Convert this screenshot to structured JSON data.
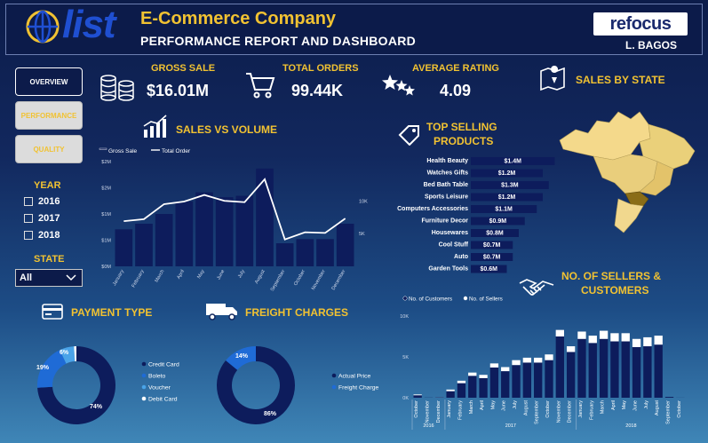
{
  "header": {
    "logo_text": "list",
    "company": "E-Commerce Company",
    "subtitle": "PERFORMANCE REPORT AND DASHBOARD",
    "brand": "refocus",
    "author": "L. BAGOS"
  },
  "nav": {
    "overview": "OVERVIEW",
    "performance": "PERFORMANCE",
    "quality": "QUALITY"
  },
  "filters": {
    "year_title": "YEAR",
    "years": [
      "2016",
      "2017",
      "2018"
    ],
    "state_title": "STATE",
    "state_selected": "All"
  },
  "kpis": {
    "gross_sale_label": "GROSS SALE",
    "gross_sale_value": "$16.01M",
    "total_orders_label": "TOTAL ORDERS",
    "total_orders_value": "99.44K",
    "avg_rating_label": "AVERAGE RATING",
    "avg_rating_value": "4.09",
    "sales_by_state_label": "SALES BY STATE"
  },
  "titles": {
    "sales_vs_volume": "SALES VS VOLUME",
    "top_selling_1": "TOP SELLING",
    "top_selling_2": "PRODUCTS",
    "payment_type": "PAYMENT TYPE",
    "freight_charges": "FREIGHT CHARGES",
    "sellers_1": "NO. OF SELLERS &",
    "sellers_2": "CUSTOMERS"
  },
  "colors": {
    "gold": "#f1c232",
    "navy": "#0c1b4a",
    "bar": "#0d1c5c",
    "accent_blue": "#1f6bd6",
    "light_blue": "#4aa3e8"
  },
  "chart_data": [
    {
      "type": "bar",
      "id": "sales_vs_volume",
      "title": "SALES VS VOLUME",
      "categories": [
        "January",
        "February",
        "March",
        "April",
        "May",
        "June",
        "July",
        "August",
        "September",
        "October",
        "November",
        "December"
      ],
      "series": [
        {
          "name": "Gross Sale",
          "axis": "left",
          "values": [
            1.06,
            1.22,
            1.5,
            1.86,
            2.12,
            1.98,
            2.02,
            2.8,
            0.66,
            0.78,
            0.78,
            1.22
          ]
        },
        {
          "name": "Total Order",
          "axis": "right",
          "values": [
            6.9,
            7.2,
            9.5,
            9.9,
            10.9,
            10.0,
            9.8,
            13.3,
            4.1,
            5.2,
            5.1,
            7.3
          ]
        }
      ],
      "left_ticks": [
        "$0M",
        "$1M",
        "$1M",
        "$2M",
        "$2M"
      ],
      "right_ticks": [
        "5K",
        "10K"
      ],
      "ylim_left": [
        0,
        3.0
      ],
      "ylim_right": [
        0,
        16
      ]
    },
    {
      "type": "bar",
      "id": "top_selling_products",
      "orientation": "horizontal",
      "categories": [
        "Health Beauty",
        "Watches Gifts",
        "Bed Bath Table",
        "Sports Leisure",
        "Computers Accessories",
        "Furniture Decor",
        "Housewares",
        "Cool Stuff",
        "Auto",
        "Garden Tools"
      ],
      "values": [
        1.4,
        1.2,
        1.3,
        1.2,
        1.1,
        0.9,
        0.8,
        0.7,
        0.7,
        0.6
      ],
      "labels": [
        "$1.4M",
        "$1.2M",
        "$1.3M",
        "$1.2M",
        "$1.1M",
        "$0.9M",
        "$0.8M",
        "$0.7M",
        "$0.7M",
        "$0.6M"
      ],
      "xlim": [
        0,
        1.6
      ]
    },
    {
      "type": "pie",
      "id": "payment_type",
      "donut": true,
      "categories": [
        "Credit Card",
        "Boleto",
        "Voucher",
        "Debit Card"
      ],
      "values": [
        74,
        19,
        6,
        1
      ],
      "labels": [
        "74%",
        "19%",
        "6%",
        ""
      ],
      "colors": [
        "#0d1c5c",
        "#1f6bd6",
        "#4aa3e8",
        "#ffffff"
      ]
    },
    {
      "type": "pie",
      "id": "freight_charges",
      "donut": true,
      "categories": [
        "Actual Price",
        "Freight Charge"
      ],
      "values": [
        86,
        14
      ],
      "labels": [
        "86%",
        "14%"
      ],
      "colors": [
        "#0d1c5c",
        "#1f6bd6"
      ]
    },
    {
      "type": "bar",
      "id": "sellers_customers",
      "stacked": true,
      "categories": [
        "October",
        "November",
        "December",
        "January",
        "February",
        "March",
        "April",
        "May",
        "June",
        "July",
        "August",
        "September",
        "October",
        "November",
        "December",
        "January",
        "February",
        "March",
        "April",
        "May",
        "June",
        "July",
        "August",
        "September",
        "October"
      ],
      "groups": [
        {
          "label": "2016",
          "count": 3
        },
        {
          "label": "2017",
          "count": 12
        },
        {
          "label": "2018",
          "count": 10
        }
      ],
      "series": [
        {
          "name": "No. of Customers",
          "values": [
            0.3,
            0.02,
            0.05,
            0.8,
            1.78,
            2.68,
            2.4,
            3.7,
            3.25,
            4.0,
            4.3,
            4.3,
            4.6,
            7.5,
            5.6,
            7.2,
            6.7,
            7.2,
            6.9,
            6.9,
            6.2,
            6.3,
            6.5,
            0.1,
            0.01
          ]
        },
        {
          "name": "No. of Sellers",
          "values": [
            0.1,
            0.0,
            0.01,
            0.2,
            0.3,
            0.4,
            0.4,
            0.5,
            0.5,
            0.6,
            0.6,
            0.6,
            0.7,
            0.8,
            0.7,
            0.9,
            0.9,
            1.0,
            1.0,
            1.0,
            1.0,
            1.1,
            1.1,
            0.0,
            0.0
          ]
        }
      ],
      "y_ticks": [
        "0K",
        "5K",
        "10K"
      ],
      "ylim": [
        0,
        10
      ]
    }
  ]
}
